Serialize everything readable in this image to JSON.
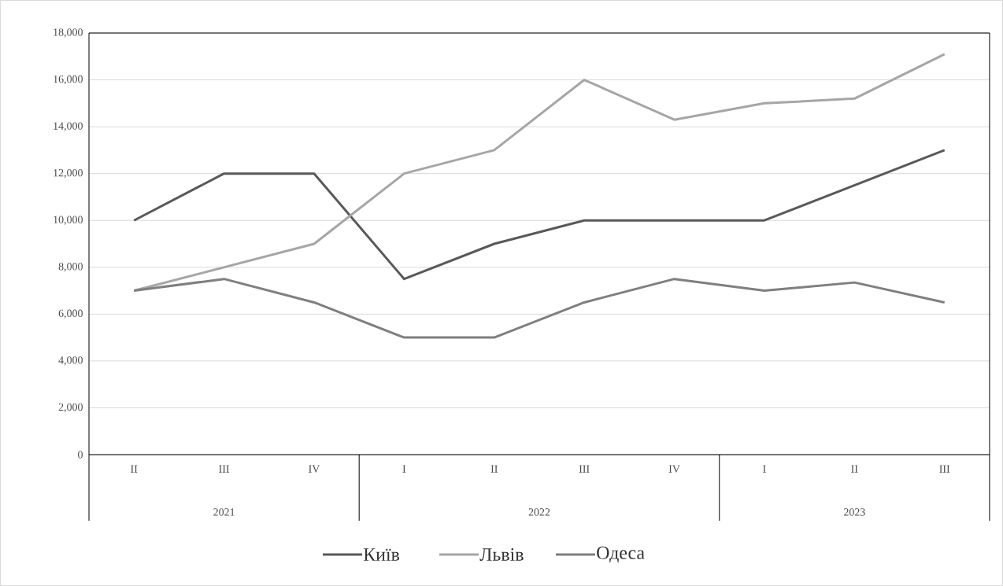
{
  "chart_data": {
    "type": "line",
    "categories": [
      "II",
      "III",
      "IV",
      "I",
      "II",
      "III",
      "IV",
      "I",
      "II",
      "III"
    ],
    "annotations": [
      "2021",
      "2022",
      "2023"
    ],
    "series": [
      {
        "name": "Київ",
        "color": "#595959",
        "values": [
          10000,
          12000,
          12000,
          7500,
          9000,
          10000,
          10000,
          10000,
          11500,
          13000
        ]
      },
      {
        "name": "Львів",
        "color": "#a6a6a6",
        "values": [
          7000,
          8000,
          9000,
          12000,
          13000,
          16000,
          14300,
          15000,
          15200,
          17100
        ]
      },
      {
        "name": "Одеса",
        "color": "#7f7f7f",
        "values": [
          7000,
          7500,
          6500,
          5000,
          5000,
          6500,
          7500,
          7000,
          7350,
          6500
        ]
      }
    ],
    "ylim": [
      0,
      18000
    ],
    "yticks": [
      {
        "value": 0,
        "label": "0"
      },
      {
        "value": 2000,
        "label": "2,000"
      },
      {
        "value": 4000,
        "label": "4,000"
      },
      {
        "value": 6000,
        "label": "6,000"
      },
      {
        "value": 8000,
        "label": "8,000"
      },
      {
        "value": 10000,
        "label": "10,000"
      },
      {
        "value": 12000,
        "label": "12,000"
      },
      {
        "value": 14000,
        "label": "14,000"
      },
      {
        "value": 16000,
        "label": "16,000"
      },
      {
        "value": 18000,
        "label": "18,000"
      }
    ],
    "grid": "y",
    "legend": "bottom",
    "marker": "none",
    "line_style": "solid"
  }
}
